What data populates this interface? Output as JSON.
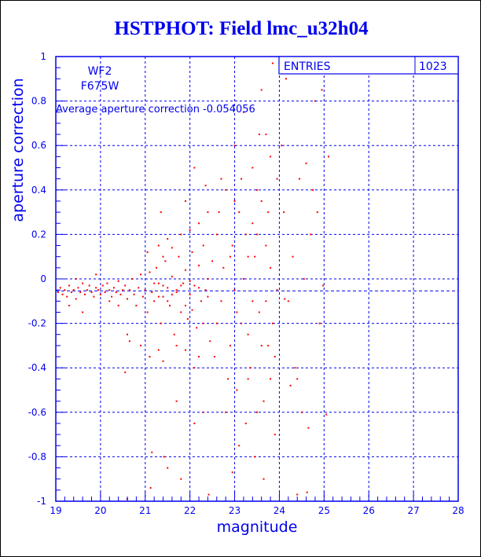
{
  "title": "HSTPHOT: Field lmc_u32h04",
  "colors": {
    "axis": "#0000ee",
    "points": "#ff0000",
    "background": "#ffffff"
  },
  "labels": {
    "camera": "WF2",
    "filter": "F675W",
    "average": "Average aperture correction -0.054056"
  },
  "stats": {
    "entries_label": "ENTRIES",
    "entries_value": "1023"
  },
  "chart_data": {
    "type": "scatter",
    "title": "HSTPHOT: Field lmc_u32h04",
    "xlabel": "magnitude",
    "ylabel": "aperture correction",
    "xlim": [
      19,
      28
    ],
    "ylim": [
      -1,
      1
    ],
    "xticks": [
      "19",
      "20",
      "21",
      "22",
      "23",
      "24",
      "25",
      "26",
      "27",
      "28"
    ],
    "yticks": [
      "-1",
      "-0.8",
      "-0.6",
      "-0.4",
      "-0.2",
      "0",
      "0.2",
      "0.4",
      "0.6",
      "0.8",
      "1"
    ],
    "grid": true,
    "reference_line": -0.054056,
    "points": [
      [
        19.05,
        -0.06
      ],
      [
        19.1,
        -0.04
      ],
      [
        19.15,
        -0.07
      ],
      [
        19.2,
        -0.05
      ],
      [
        19.25,
        -0.08
      ],
      [
        19.3,
        -0.03
      ],
      [
        19.35,
        -0.06
      ],
      [
        19.4,
        -0.05
      ],
      [
        19.45,
        -0.09
      ],
      [
        19.5,
        -0.04
      ],
      [
        19.55,
        -0.06
      ],
      [
        19.6,
        -0.02
      ],
      [
        19.65,
        -0.07
      ],
      [
        19.7,
        -0.05
      ],
      [
        19.75,
        -0.03
      ],
      [
        19.8,
        -0.06
      ],
      [
        19.85,
        -0.08
      ],
      [
        19.9,
        -0.04
      ],
      [
        19.95,
        -0.05
      ],
      [
        20.0,
        -0.07
      ],
      [
        20.05,
        -0.03
      ],
      [
        20.1,
        -0.06
      ],
      [
        20.15,
        -0.02
      ],
      [
        20.2,
        -0.05
      ],
      [
        20.25,
        -0.08
      ],
      [
        20.3,
        -0.04
      ],
      [
        20.35,
        -0.06
      ],
      [
        20.4,
        -0.01
      ],
      [
        20.45,
        -0.07
      ],
      [
        20.5,
        -0.05
      ],
      [
        19.3,
        -0.12
      ],
      [
        19.6,
        -0.15
      ],
      [
        19.9,
        0.02
      ],
      [
        20.2,
        -0.1
      ],
      [
        20.4,
        -0.12
      ],
      [
        19.45,
        0.0
      ],
      [
        20.55,
        -0.03
      ],
      [
        20.6,
        -0.09
      ],
      [
        20.65,
        -0.05
      ],
      [
        20.7,
        0.0
      ],
      [
        20.75,
        -0.07
      ],
      [
        20.8,
        -0.12
      ],
      [
        20.85,
        -0.04
      ],
      [
        20.9,
        0.02
      ],
      [
        20.95,
        -0.08
      ],
      [
        21.0,
        -0.05
      ],
      [
        21.05,
        -0.15
      ],
      [
        21.1,
        0.03
      ],
      [
        21.15,
        -0.06
      ],
      [
        21.2,
        -0.1
      ],
      [
        21.25,
        0.05
      ],
      [
        21.3,
        -0.02
      ],
      [
        21.35,
        -0.2
      ],
      [
        21.4,
        -0.08
      ],
      [
        21.45,
        0.08
      ],
      [
        21.5,
        -0.04
      ],
      [
        21.55,
        -0.12
      ],
      [
        21.6,
        0.01
      ],
      [
        21.65,
        -0.25
      ],
      [
        21.7,
        -0.06
      ],
      [
        21.75,
        0.1
      ],
      [
        21.8,
        -0.15
      ],
      [
        21.85,
        -0.02
      ],
      [
        21.9,
        0.04
      ],
      [
        21.95,
        -0.18
      ],
      [
        22.0,
        -0.07
      ],
      [
        22.05,
        0.12
      ],
      [
        22.1,
        -0.03
      ],
      [
        22.15,
        -0.22
      ],
      [
        22.2,
        0.06
      ],
      [
        22.25,
        -0.1
      ],
      [
        22.3,
        0.15
      ],
      [
        22.35,
        -0.05
      ],
      [
        22.4,
        0.0
      ],
      [
        22.45,
        -0.28
      ],
      [
        22.5,
        0.08
      ],
      [
        20.6,
        -0.25
      ],
      [
        20.65,
        -0.28
      ],
      [
        20.55,
        -0.42
      ],
      [
        20.9,
        -0.3
      ],
      [
        21.1,
        -0.35
      ],
      [
        21.3,
        -0.32
      ],
      [
        21.4,
        -0.37
      ],
      [
        21.7,
        -0.3
      ],
      [
        21.9,
        -0.32
      ],
      [
        22.1,
        -0.4
      ],
      [
        22.2,
        -0.35
      ],
      [
        21.05,
        0.12
      ],
      [
        21.3,
        0.15
      ],
      [
        21.5,
        0.18
      ],
      [
        21.8,
        0.2
      ],
      [
        22.0,
        0.22
      ],
      [
        22.2,
        0.25
      ],
      [
        22.4,
        0.3
      ],
      [
        21.4,
        0.1
      ],
      [
        21.6,
        0.14
      ],
      [
        21.3,
        -0.08
      ],
      [
        21.5,
        -0.1
      ],
      [
        21.7,
        -0.05
      ],
      [
        21.9,
        -0.12
      ],
      [
        22.05,
        -0.14
      ],
      [
        22.3,
        -0.2
      ],
      [
        21.2,
        -0.02
      ],
      [
        21.4,
        -0.03
      ],
      [
        21.6,
        -0.07
      ],
      [
        21.8,
        -0.03
      ],
      [
        22.0,
        -0.01
      ],
      [
        22.2,
        -0.04
      ],
      [
        22.4,
        -0.08
      ],
      [
        21.15,
        -0.78
      ],
      [
        20.6,
        -0.99
      ],
      [
        21.12,
        -0.94
      ],
      [
        21.42,
        -0.8
      ],
      [
        21.8,
        -0.9
      ],
      [
        22.42,
        -0.97
      ],
      [
        21.5,
        -0.85
      ],
      [
        22.1,
        -0.65
      ],
      [
        21.7,
        -0.55
      ],
      [
        22.3,
        -0.6
      ],
      [
        21.9,
        0.35
      ],
      [
        22.1,
        0.5
      ],
      [
        22.35,
        0.42
      ],
      [
        21.35,
        0.3
      ],
      [
        22.6,
        0.2
      ],
      [
        22.7,
        -0.1
      ],
      [
        22.8,
        0.4
      ],
      [
        22.9,
        -0.3
      ],
      [
        23.0,
        0.6
      ],
      [
        23.05,
        -0.5
      ],
      [
        23.1,
        0.3
      ],
      [
        23.15,
        -0.2
      ],
      [
        23.2,
        0.75
      ],
      [
        23.25,
        -0.65
      ],
      [
        23.3,
        0.1
      ],
      [
        23.35,
        -0.4
      ],
      [
        23.4,
        0.5
      ],
      [
        23.45,
        -0.8
      ],
      [
        23.5,
        0.2
      ],
      [
        23.55,
        -0.15
      ],
      [
        23.6,
        0.35
      ],
      [
        23.65,
        -0.55
      ],
      [
        23.7,
        0.65
      ],
      [
        23.75,
        -0.3
      ],
      [
        23.8,
        0.05
      ],
      [
        23.85,
        0.97
      ],
      [
        23.9,
        -0.7
      ],
      [
        23.95,
        0.45
      ],
      [
        22.6,
        -0.2
      ],
      [
        22.75,
        0.05
      ],
      [
        22.85,
        -0.45
      ],
      [
        22.95,
        0.15
      ],
      [
        23.0,
        -0.05
      ],
      [
        23.1,
        -0.75
      ],
      [
        23.2,
        0.0
      ],
      [
        23.3,
        -0.25
      ],
      [
        23.4,
        0.25
      ],
      [
        23.5,
        -0.6
      ],
      [
        23.6,
        0.85
      ],
      [
        23.7,
        -0.1
      ],
      [
        23.8,
        0.55
      ],
      [
        23.9,
        -0.35
      ],
      [
        22.65,
        0.3
      ],
      [
        22.8,
        -0.6
      ],
      [
        22.95,
        -0.87
      ],
      [
        23.15,
        0.45
      ],
      [
        23.25,
        0.2
      ],
      [
        23.45,
        0.1
      ],
      [
        23.55,
        0.65
      ],
      [
        23.65,
        -0.9
      ],
      [
        23.75,
        0.3
      ],
      [
        23.85,
        -0.2
      ],
      [
        22.55,
        -0.35
      ],
      [
        22.7,
        0.45
      ],
      [
        23.0,
        0.35
      ],
      [
        23.3,
        -0.45
      ],
      [
        23.5,
        0.4
      ],
      [
        23.7,
        0.15
      ],
      [
        23.95,
        -0.05
      ],
      [
        22.9,
        0.1
      ],
      [
        23.05,
        -0.15
      ],
      [
        23.4,
        -0.1
      ],
      [
        23.6,
        -0.3
      ],
      [
        23.8,
        -0.45
      ],
      [
        24.05,
        0.6
      ],
      [
        24.1,
        0.3
      ],
      [
        24.2,
        -0.1
      ],
      [
        24.3,
        0.1
      ],
      [
        24.35,
        -0.4
      ],
      [
        24.4,
        -0.97
      ],
      [
        24.45,
        0.45
      ],
      [
        24.5,
        -0.6
      ],
      [
        24.55,
        0.0
      ],
      [
        24.62,
        -0.96
      ],
      [
        24.65,
        -0.67
      ],
      [
        24.7,
        0.2
      ],
      [
        24.8,
        0.8
      ],
      [
        24.85,
        0.3
      ],
      [
        24.9,
        -0.2
      ],
      [
        24.95,
        0.85
      ],
      [
        24.98,
        -0.03
      ],
      [
        25.1,
        0.55
      ],
      [
        25.05,
        -0.61
      ],
      [
        24.25,
        -0.48
      ],
      [
        24.15,
        0.9
      ],
      [
        24.6,
        0.52
      ],
      [
        24.75,
        0.4
      ],
      [
        24.4,
        -0.45
      ],
      [
        24.12,
        -0.09
      ]
    ]
  }
}
